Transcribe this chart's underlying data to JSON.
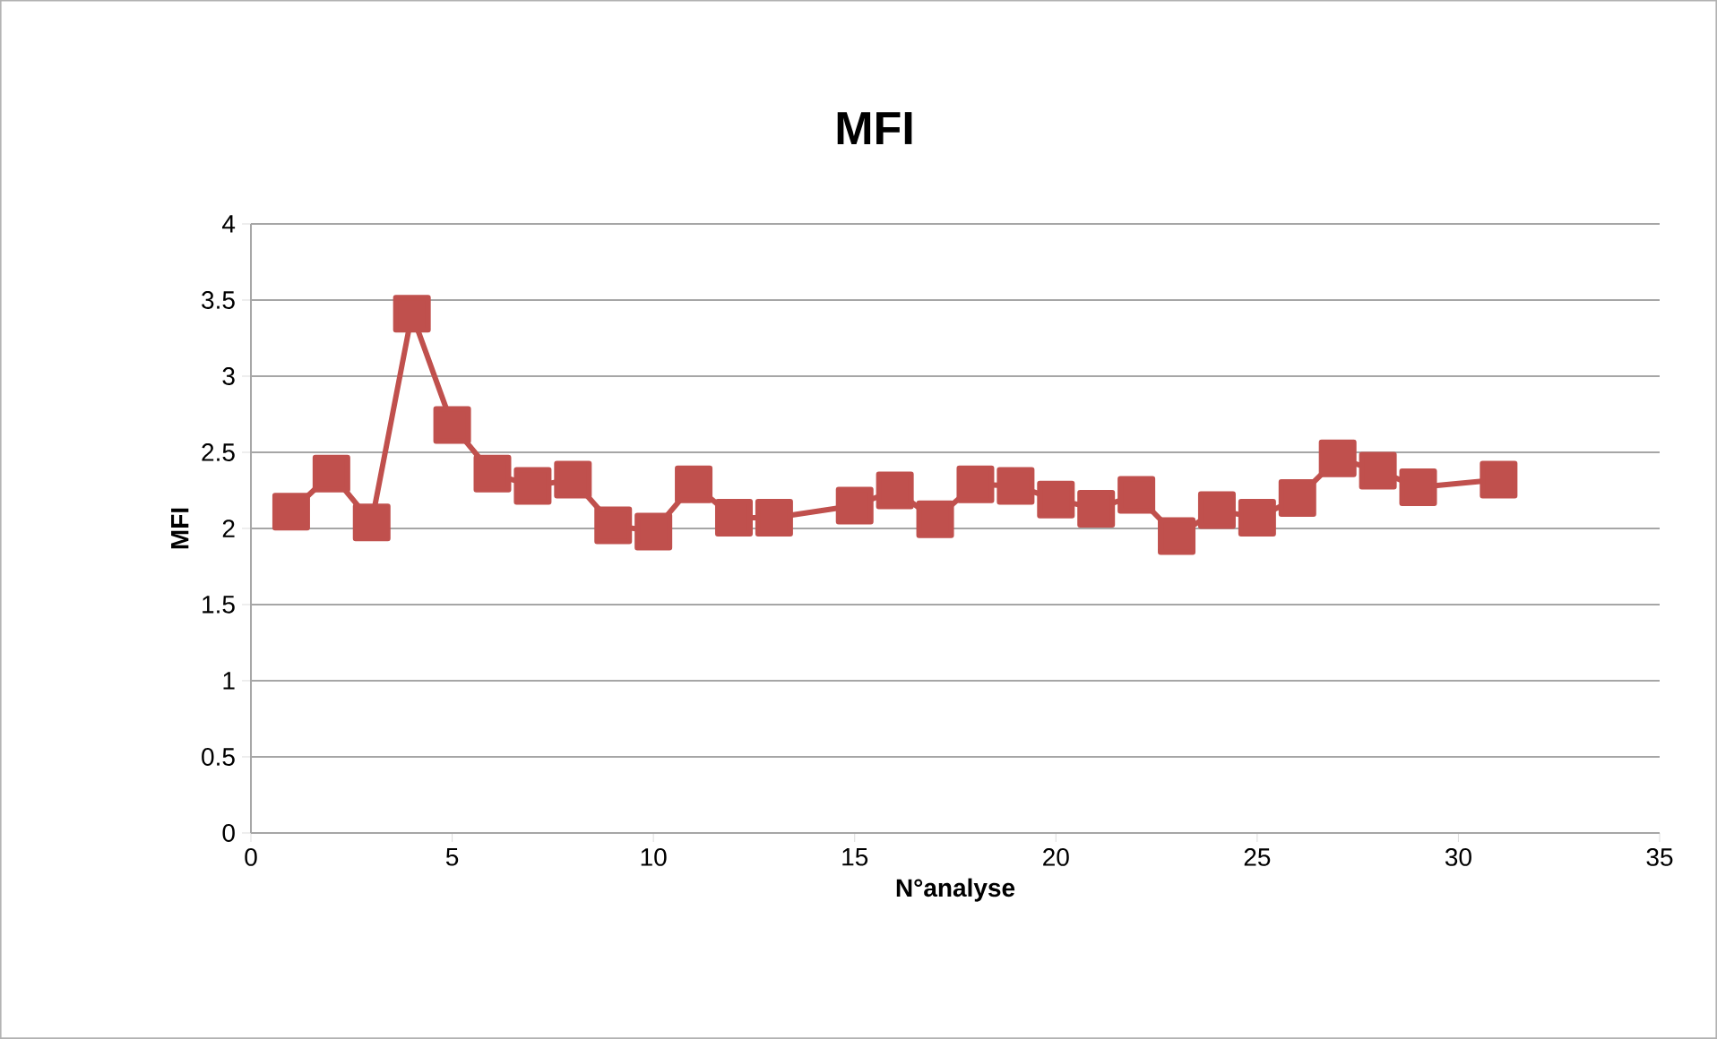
{
  "chart_data": {
    "type": "line",
    "title": "MFI",
    "xlabel": "N°analyse",
    "ylabel": "MFI",
    "x": [
      1,
      2,
      3,
      4,
      5,
      6,
      7,
      8,
      9,
      10,
      11,
      12,
      13,
      15,
      16,
      17,
      18,
      19,
      20,
      21,
      22,
      23,
      24,
      25,
      26,
      27,
      28,
      29,
      31
    ],
    "series": [
      {
        "color": "#c0504d",
        "values": [
          2.11,
          2.36,
          2.04,
          3.41,
          2.68,
          2.36,
          2.28,
          2.32,
          2.02,
          1.98,
          2.29,
          2.07,
          2.07,
          2.15,
          2.25,
          2.06,
          2.29,
          2.28,
          2.19,
          2.13,
          2.22,
          1.95,
          2.12,
          2.07,
          2.2,
          2.46,
          2.38,
          2.27,
          2.32
        ]
      }
    ],
    "xlim": [
      0,
      35
    ],
    "xticks": [
      0,
      5,
      10,
      15,
      20,
      25,
      30,
      35
    ],
    "ylim": [
      0,
      4
    ],
    "yticks": [
      0,
      0.5,
      1,
      1.5,
      2,
      2.5,
      3,
      3.5,
      4
    ],
    "grid": "y",
    "marker": "square",
    "line_style": "solid"
  }
}
